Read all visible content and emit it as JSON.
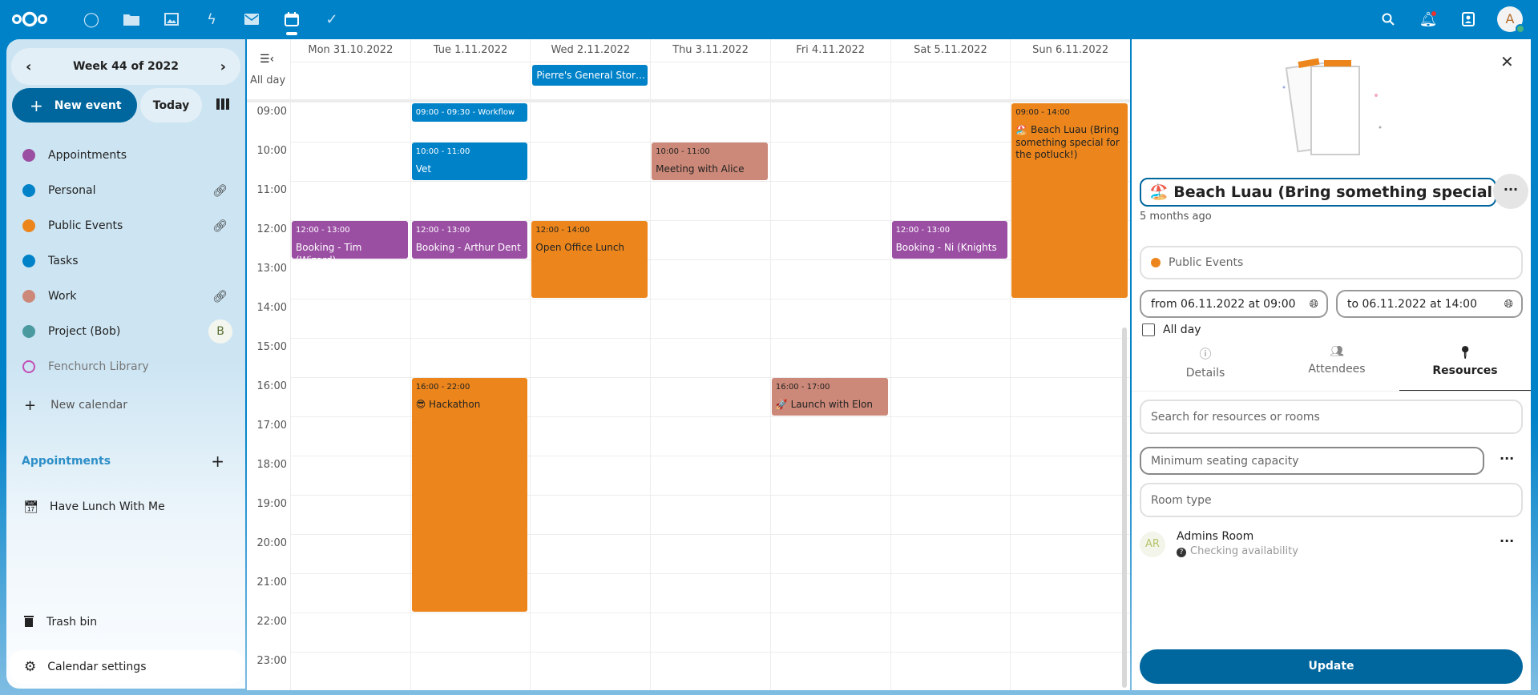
{
  "topbar": {
    "apps": [
      "dashboard",
      "files",
      "photos",
      "activity",
      "mail",
      "calendar",
      "tasks"
    ],
    "active_app": "calendar",
    "avatar_letter": "A"
  },
  "sidebar": {
    "week_label": "Week 44 of 2022",
    "new_event": "New event",
    "today": "Today",
    "calendars": [
      {
        "name": "Appointments",
        "color": "#9b4fa3",
        "shared": false
      },
      {
        "name": "Personal",
        "color": "#0082c9",
        "shared": true
      },
      {
        "name": "Public Events",
        "color": "#ec861c",
        "shared": true
      },
      {
        "name": "Tasks",
        "color": "#0082c9",
        "shared": false
      },
      {
        "name": "Work",
        "color": "#cc8878",
        "shared": true
      },
      {
        "name": "Project (Bob)",
        "color": "#4a9aa0",
        "owner_initial": "B"
      },
      {
        "name": "Fenchurch Library",
        "color": "#c24fb6",
        "disabled": true
      }
    ],
    "new_calendar": "New calendar",
    "appointments_header": "Appointments",
    "appointment_items": [
      "Have Lunch With Me"
    ],
    "trash": "Trash bin",
    "settings": "Calendar settings"
  },
  "calendar": {
    "all_day_label": "All day",
    "days": [
      "Mon 31.10.2022",
      "Tue 1.11.2022",
      "Wed 2.11.2022",
      "Thu 3.11.2022",
      "Fri 4.11.2022",
      "Sat 5.11.2022",
      "Sun 6.11.2022"
    ],
    "hours": [
      "09:00",
      "10:00",
      "11:00",
      "12:00",
      "13:00",
      "14:00",
      "15:00",
      "16:00",
      "17:00",
      "18:00",
      "19:00",
      "20:00",
      "21:00",
      "22:00",
      "23:00"
    ],
    "all_day_events": [
      {
        "day": 2,
        "title": "Pierre's General Stor…",
        "color": "#0082c9"
      }
    ],
    "events": [
      {
        "day": 1,
        "start": 9,
        "end": 9.5,
        "time": "09:00 - 09:30 - Workflow",
        "title": "",
        "color": "#0082c9",
        "text": "#fff"
      },
      {
        "day": 1,
        "start": 10,
        "end": 11,
        "time": "10:00 - 11:00",
        "title": "Vet",
        "color": "#0082c9",
        "text": "#fff"
      },
      {
        "day": 3,
        "start": 10,
        "end": 11,
        "time": "10:00 - 11:00",
        "title": "Meeting with Alice",
        "color": "#cc8878",
        "text": "#222"
      },
      {
        "day": 0,
        "start": 12,
        "end": 13,
        "time": "12:00 - 13:00",
        "title": "Booking - Tim (Wizard)",
        "color": "#9b4fa3",
        "text": "#fff"
      },
      {
        "day": 1,
        "start": 12,
        "end": 13,
        "time": "12:00 - 13:00",
        "title": "Booking - Arthur Dent",
        "color": "#9b4fa3",
        "text": "#fff"
      },
      {
        "day": 2,
        "start": 12,
        "end": 14,
        "time": "12:00 - 14:00",
        "title": "Open Office Lunch",
        "color": "#ec861c",
        "text": "#222"
      },
      {
        "day": 5,
        "start": 12,
        "end": 13,
        "time": "12:00 - 13:00",
        "title": "Booking - Ni (Knights",
        "color": "#9b4fa3",
        "text": "#fff"
      },
      {
        "day": 6,
        "start": 9,
        "end": 14,
        "time": "09:00 - 14:00",
        "title": "🏖️ Beach Luau (Bring something special for the potluck!)",
        "color": "#ec861c",
        "text": "#222"
      },
      {
        "day": 1,
        "start": 16,
        "end": 22,
        "time": "16:00 - 22:00",
        "title": "😎 Hackathon",
        "color": "#ec861c",
        "text": "#222"
      },
      {
        "day": 4,
        "start": 16,
        "end": 17,
        "time": "16:00 - 17:00",
        "title": "🚀 Launch with Elon",
        "color": "#cc8878",
        "text": "#222"
      }
    ]
  },
  "panel": {
    "title": "🏖️ Beach Luau (Bring something special for",
    "modified": "5 months ago",
    "calendar": "Public Events",
    "calendar_color": "#ec861c",
    "from": "from 06.11.2022 at 09:00",
    "to": "to 06.11.2022 at 14:00",
    "all_day": "All day",
    "tabs": [
      "Details",
      "Attendees",
      "Resources"
    ],
    "active_tab": "Resources",
    "search_placeholder": "Search for resources or rooms",
    "seating_placeholder": "Minimum seating capacity",
    "room_type_placeholder": "Room type",
    "resource": {
      "initials": "AR",
      "name": "Admins Room",
      "status": "Checking availability"
    },
    "update": "Update"
  }
}
